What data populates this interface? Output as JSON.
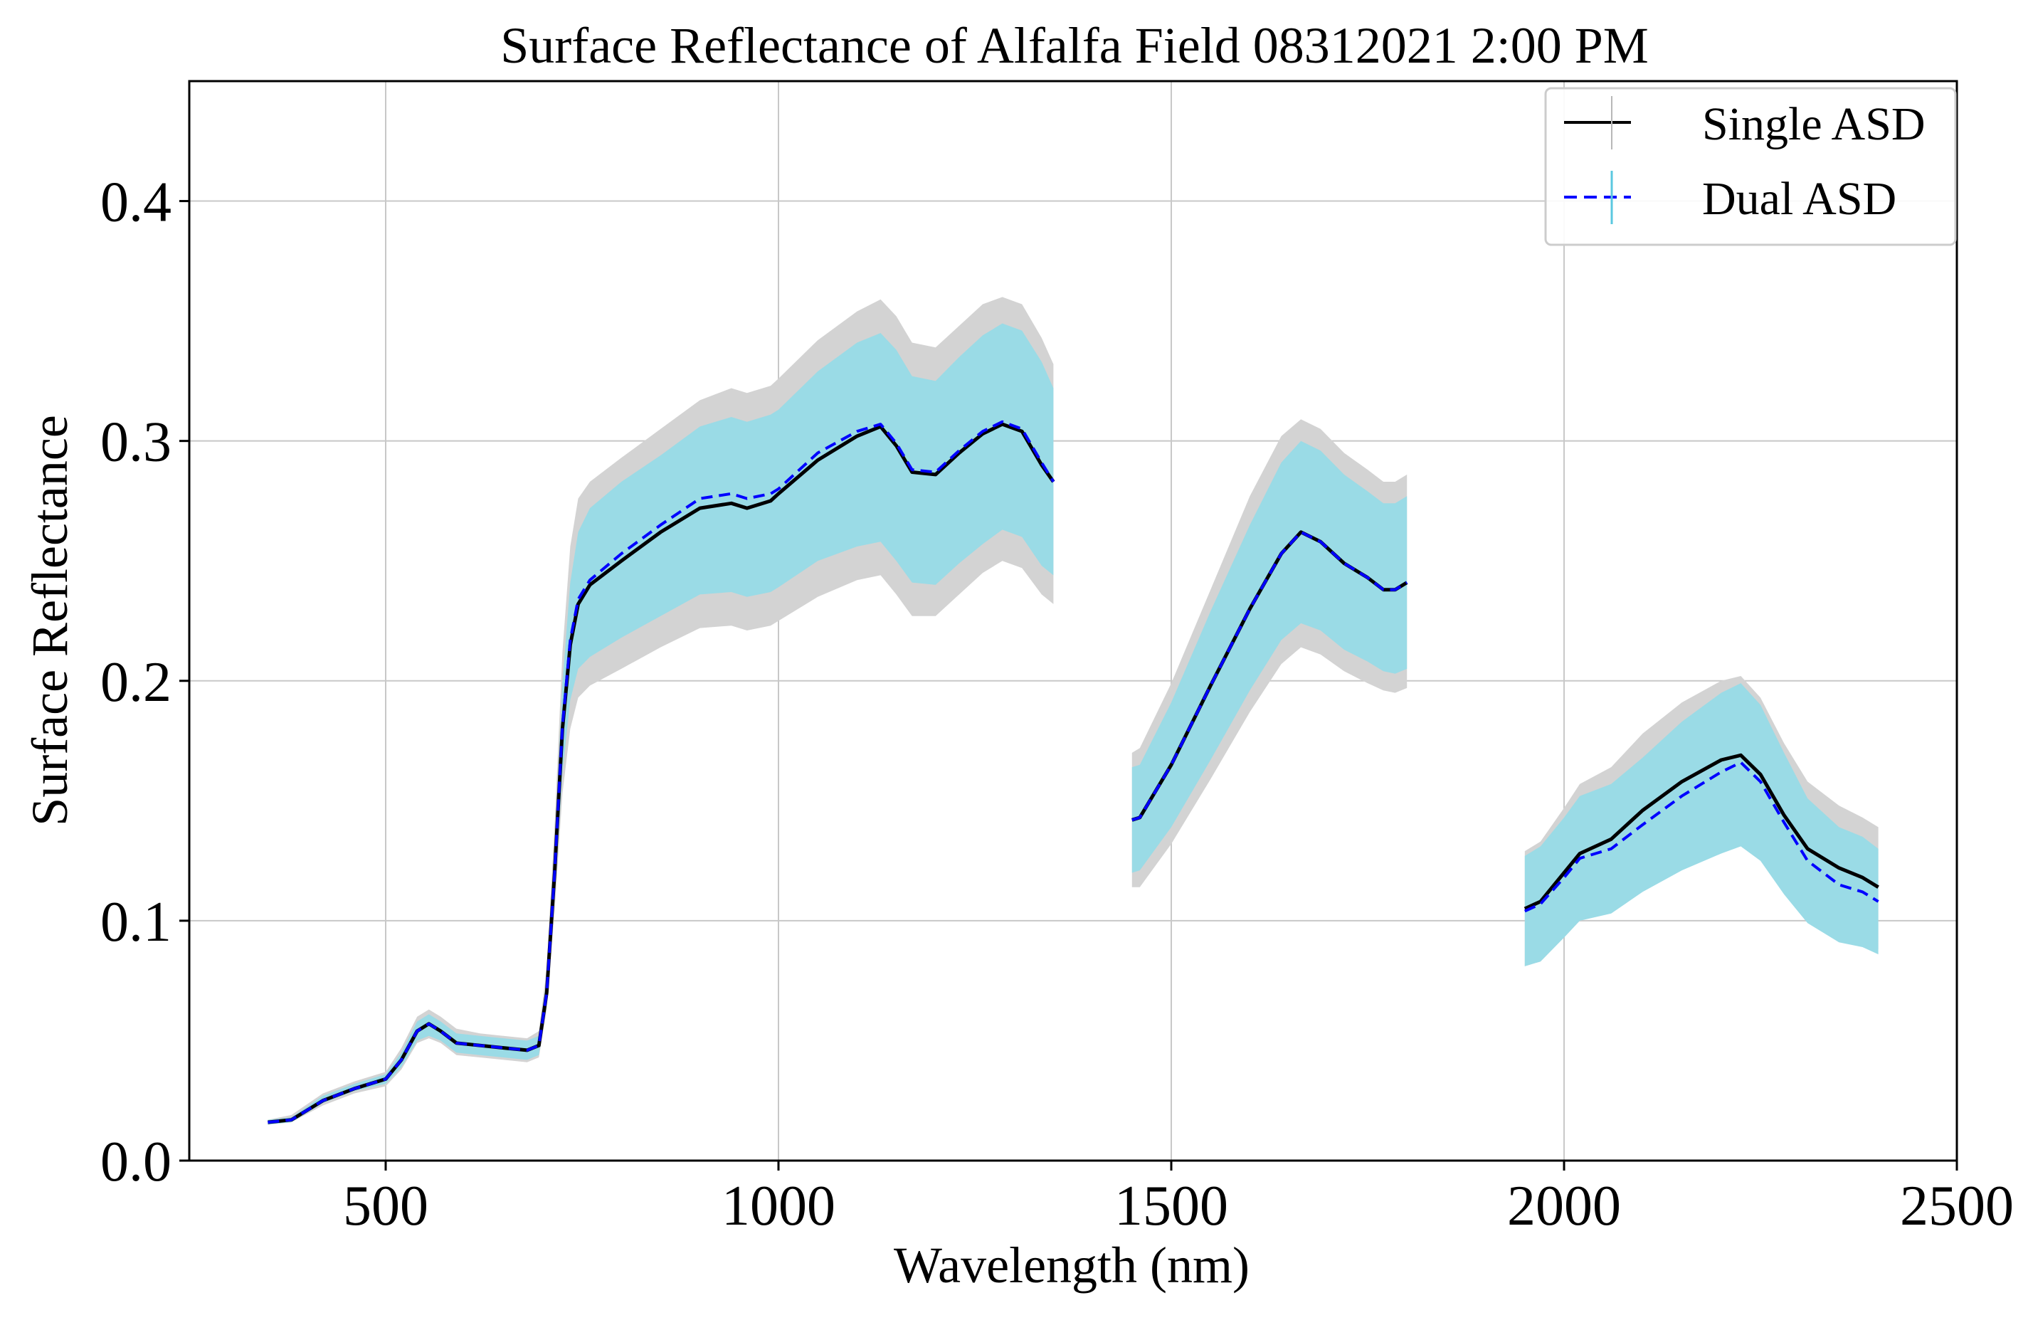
{
  "colors": {
    "single_line": "#000000",
    "dual_line": "#0000ff",
    "single_band": "#d3d3d3",
    "dual_band": "#9adbe6",
    "grid": "#c8c8c8",
    "axis": "#000000"
  },
  "chart_data": {
    "type": "line",
    "title": "Surface Reflectance of Alfalfa Field 08312021 2:00 PM",
    "xlabel": "Wavelength (nm)",
    "ylabel": "Surface Reflectance",
    "xlim": [
      250,
      2500
    ],
    "ylim": [
      0,
      0.45
    ],
    "xticks": [
      500,
      1000,
      1500,
      2000,
      2500
    ],
    "xtick_labels": [
      "500",
      "1000",
      "1500",
      "2000",
      "2500"
    ],
    "yticks": [
      0.0,
      0.1,
      0.2,
      0.3,
      0.4
    ],
    "ytick_labels": [
      "0.0",
      "0.1",
      "0.2",
      "0.3",
      "0.4"
    ],
    "grid": true,
    "legend": {
      "position": "top-right",
      "entries": [
        "Single ASD",
        "Dual ASD"
      ]
    },
    "series": [
      {
        "name": "Single ASD",
        "style": "solid",
        "segments": [
          {
            "x": [
              350,
              380,
              420,
              460,
              500,
              520,
              540,
              555,
              570,
              590,
              620,
              650,
              680,
              695,
              705,
              715,
              725,
              735,
              745,
              760,
              800,
              850,
              900,
              940,
              960,
              990,
              1000,
              1050,
              1100,
              1130,
              1150,
              1170,
              1200,
              1230,
              1260,
              1285,
              1310,
              1335,
              1350
            ],
            "y": [
              0.016,
              0.017,
              0.025,
              0.03,
              0.034,
              0.042,
              0.054,
              0.057,
              0.054,
              0.049,
              0.048,
              0.047,
              0.046,
              0.048,
              0.07,
              0.12,
              0.18,
              0.215,
              0.232,
              0.24,
              0.25,
              0.262,
              0.272,
              0.274,
              0.272,
              0.275,
              0.278,
              0.292,
              0.302,
              0.306,
              0.298,
              0.287,
              0.286,
              0.295,
              0.303,
              0.307,
              0.304,
              0.29,
              0.283
            ]
          },
          {
            "x": [
              1450,
              1460,
              1500,
              1550,
              1600,
              1640,
              1665,
              1690,
              1720,
              1750,
              1770,
              1785,
              1800
            ],
            "y": [
              0.142,
              0.143,
              0.165,
              0.198,
              0.23,
              0.253,
              0.262,
              0.258,
              0.249,
              0.243,
              0.238,
              0.238,
              0.241
            ]
          },
          {
            "x": [
              1950,
              1970,
              2000,
              2020,
              2060,
              2100,
              2150,
              2200,
              2225,
              2250,
              2280,
              2310,
              2350,
              2380,
              2400
            ],
            "y": [
              0.105,
              0.108,
              0.12,
              0.128,
              0.134,
              0.146,
              0.158,
              0.167,
              0.169,
              0.161,
              0.144,
              0.13,
              0.122,
              0.118,
              0.114
            ]
          }
        ],
        "band_segments": [
          {
            "lower": [
              0.015,
              0.016,
              0.023,
              0.028,
              0.031,
              0.038,
              0.049,
              0.051,
              0.049,
              0.044,
              0.043,
              0.042,
              0.041,
              0.043,
              0.063,
              0.104,
              0.153,
              0.18,
              0.193,
              0.198,
              0.205,
              0.214,
              0.222,
              0.223,
              0.221,
              0.223,
              0.225,
              0.235,
              0.242,
              0.244,
              0.236,
              0.227,
              0.227,
              0.236,
              0.245,
              0.25,
              0.247,
              0.236,
              0.232
            ],
            "upper": [
              0.017,
              0.019,
              0.028,
              0.033,
              0.037,
              0.047,
              0.06,
              0.063,
              0.06,
              0.055,
              0.053,
              0.052,
              0.051,
              0.054,
              0.08,
              0.14,
              0.212,
              0.256,
              0.276,
              0.283,
              0.293,
              0.305,
              0.317,
              0.322,
              0.32,
              0.323,
              0.326,
              0.342,
              0.354,
              0.359,
              0.352,
              0.341,
              0.339,
              0.348,
              0.357,
              0.36,
              0.357,
              0.343,
              0.332
            ]
          },
          {
            "lower": [
              0.114,
              0.114,
              0.132,
              0.159,
              0.187,
              0.207,
              0.214,
              0.211,
              0.204,
              0.199,
              0.196,
              0.195,
              0.197
            ],
            "upper": [
              0.17,
              0.172,
              0.199,
              0.238,
              0.277,
              0.302,
              0.309,
              0.305,
              0.295,
              0.288,
              0.283,
              0.283,
              0.286
            ]
          },
          {
            "lower": [
              0.081,
              0.083,
              0.093,
              0.1,
              0.104,
              0.113,
              0.122,
              0.129,
              0.131,
              0.125,
              0.112,
              0.101,
              0.094,
              0.091,
              0.088
            ],
            "upper": [
              0.129,
              0.133,
              0.147,
              0.157,
              0.164,
              0.178,
              0.191,
              0.2,
              0.202,
              0.193,
              0.174,
              0.158,
              0.148,
              0.143,
              0.139
            ]
          }
        ]
      },
      {
        "name": "Dual ASD",
        "style": "dashed",
        "segments": [
          {
            "x": [
              350,
              380,
              420,
              460,
              500,
              520,
              540,
              555,
              570,
              590,
              620,
              650,
              680,
              695,
              705,
              715,
              725,
              735,
              745,
              760,
              800,
              850,
              900,
              940,
              960,
              990,
              1000,
              1050,
              1100,
              1130,
              1150,
              1170,
              1200,
              1230,
              1260,
              1285,
              1310,
              1335,
              1350
            ],
            "y": [
              0.016,
              0.017,
              0.025,
              0.03,
              0.034,
              0.042,
              0.054,
              0.057,
              0.054,
              0.049,
              0.048,
              0.047,
              0.046,
              0.048,
              0.07,
              0.12,
              0.181,
              0.217,
              0.234,
              0.242,
              0.253,
              0.265,
              0.276,
              0.278,
              0.276,
              0.278,
              0.28,
              0.295,
              0.304,
              0.307,
              0.299,
              0.288,
              0.287,
              0.296,
              0.304,
              0.308,
              0.305,
              0.291,
              0.283
            ]
          },
          {
            "x": [
              1450,
              1460,
              1500,
              1550,
              1600,
              1640,
              1665,
              1690,
              1720,
              1750,
              1770,
              1785,
              1800
            ],
            "y": [
              0.142,
              0.143,
              0.165,
              0.198,
              0.23,
              0.253,
              0.262,
              0.258,
              0.249,
              0.243,
              0.238,
              0.238,
              0.241
            ]
          },
          {
            "x": [
              1950,
              1970,
              2000,
              2020,
              2060,
              2100,
              2150,
              2200,
              2225,
              2250,
              2280,
              2310,
              2350,
              2380,
              2400
            ],
            "y": [
              0.104,
              0.107,
              0.118,
              0.126,
              0.13,
              0.14,
              0.152,
              0.162,
              0.166,
              0.158,
              0.141,
              0.125,
              0.115,
              0.112,
              0.108
            ]
          }
        ],
        "band_segments": [
          {
            "lower": [
              0.015,
              0.016,
              0.024,
              0.029,
              0.032,
              0.039,
              0.05,
              0.052,
              0.05,
              0.045,
              0.044,
              0.043,
              0.042,
              0.044,
              0.065,
              0.109,
              0.162,
              0.192,
              0.205,
              0.21,
              0.218,
              0.227,
              0.236,
              0.237,
              0.235,
              0.237,
              0.239,
              0.25,
              0.256,
              0.258,
              0.25,
              0.241,
              0.24,
              0.249,
              0.257,
              0.263,
              0.26,
              0.248,
              0.244
            ],
            "upper": [
              0.017,
              0.018,
              0.027,
              0.032,
              0.036,
              0.045,
              0.058,
              0.061,
              0.058,
              0.053,
              0.052,
              0.051,
              0.05,
              0.052,
              0.076,
              0.131,
              0.199,
              0.241,
              0.262,
              0.272,
              0.283,
              0.294,
              0.306,
              0.31,
              0.308,
              0.311,
              0.313,
              0.329,
              0.341,
              0.345,
              0.338,
              0.327,
              0.325,
              0.335,
              0.344,
              0.349,
              0.346,
              0.333,
              0.322
            ]
          },
          {
            "lower": [
              0.12,
              0.121,
              0.139,
              0.167,
              0.196,
              0.217,
              0.224,
              0.221,
              0.213,
              0.208,
              0.204,
              0.203,
              0.205
            ],
            "upper": [
              0.164,
              0.165,
              0.191,
              0.229,
              0.265,
              0.291,
              0.3,
              0.296,
              0.286,
              0.279,
              0.274,
              0.274,
              0.277
            ]
          },
          {
            "lower": [
              0.081,
              0.083,
              0.093,
              0.1,
              0.103,
              0.112,
              0.121,
              0.128,
              0.131,
              0.125,
              0.111,
              0.099,
              0.091,
              0.089,
              0.086
            ],
            "upper": [
              0.127,
              0.131,
              0.143,
              0.152,
              0.157,
              0.168,
              0.183,
              0.195,
              0.199,
              0.19,
              0.17,
              0.151,
              0.139,
              0.135,
              0.13
            ]
          }
        ]
      }
    ]
  }
}
